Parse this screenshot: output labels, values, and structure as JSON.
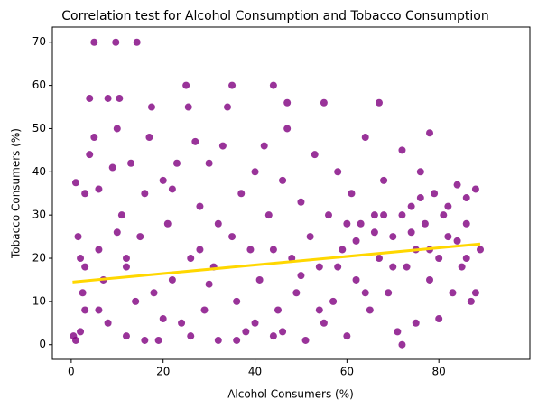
{
  "chart_data": {
    "type": "scatter",
    "title": "Correlation test for Alcohol Consumption and Tobacco Consumption",
    "x_label": "Alcohol Consumers (%)",
    "y_label": "Tobacco Consumers (%)",
    "color": "#800080",
    "line_color": "#ffd700",
    "xlim": [
      -4.1,
      99.8
    ],
    "ylim": [
      -3.4,
      73.5
    ],
    "xticks": [
      0,
      20,
      40,
      60,
      80
    ],
    "yticks": [
      0,
      10,
      20,
      30,
      40,
      50,
      60,
      70
    ],
    "x": [
      0.5,
      1,
      1.5,
      2,
      2.5,
      3,
      1,
      2,
      3,
      4,
      5,
      4,
      5,
      6,
      6,
      7,
      8,
      8,
      9,
      9.7,
      10,
      10.5,
      11,
      12,
      12,
      13,
      14.3,
      14,
      15,
      16,
      17,
      17.5,
      18,
      19,
      20,
      21,
      22,
      23,
      24,
      25,
      25.5,
      26,
      27,
      28,
      29,
      30,
      31,
      32,
      33,
      34,
      35,
      35,
      36,
      37,
      38,
      39,
      40,
      41,
      42,
      43,
      44,
      44,
      45,
      46,
      47,
      47,
      48,
      49,
      50,
      51,
      52,
      53,
      54,
      55,
      55,
      56,
      57,
      58,
      59,
      60,
      61,
      62,
      63,
      64,
      65,
      66,
      67,
      67,
      68,
      69,
      70,
      71,
      72,
      72,
      73,
      74,
      75,
      75,
      76,
      77,
      78,
      78,
      79,
      80,
      80,
      81,
      82,
      83,
      84,
      85,
      86,
      87,
      88,
      89,
      62,
      66,
      70,
      74,
      82,
      86,
      68,
      58,
      54,
      46,
      40,
      36,
      30,
      26,
      20,
      16,
      12,
      6,
      3,
      50,
      64,
      76,
      84,
      60,
      44,
      32,
      28,
      22,
      10,
      88,
      86,
      78,
      72
    ],
    "y": [
      2,
      37.5,
      25,
      20,
      12,
      8,
      1,
      3,
      35,
      44,
      70,
      57,
      48,
      36,
      22,
      15,
      5,
      57,
      41,
      70,
      50,
      57,
      30,
      18,
      2,
      42,
      70,
      10,
      25,
      35,
      48,
      55,
      12,
      1,
      38,
      28,
      15,
      42,
      5,
      60,
      55,
      20,
      47,
      32,
      8,
      42,
      18,
      1,
      46,
      55,
      60,
      25,
      10,
      35,
      3,
      22,
      40,
      15,
      46,
      30,
      60,
      2,
      8,
      38,
      56,
      50,
      20,
      12,
      33,
      1,
      25,
      44,
      18,
      56,
      5,
      30,
      10,
      40,
      22,
      2,
      35,
      15,
      28,
      48,
      8,
      30,
      56,
      20,
      38,
      12,
      25,
      3,
      45,
      0,
      18,
      32,
      22,
      5,
      40,
      28,
      15,
      49,
      35,
      20,
      6,
      30,
      25,
      12,
      37,
      18,
      28,
      10,
      36,
      22,
      24,
      26,
      18,
      26,
      32,
      20,
      30,
      18,
      8,
      3,
      5,
      1,
      14,
      2,
      6,
      1,
      20,
      8,
      18,
      16,
      12,
      34,
      24,
      28,
      22,
      28,
      22,
      36,
      26,
      12,
      34,
      22,
      30
    ],
    "line": {
      "x": [
        0.3,
        89
      ],
      "y": [
        14.5,
        23.3
      ]
    }
  }
}
